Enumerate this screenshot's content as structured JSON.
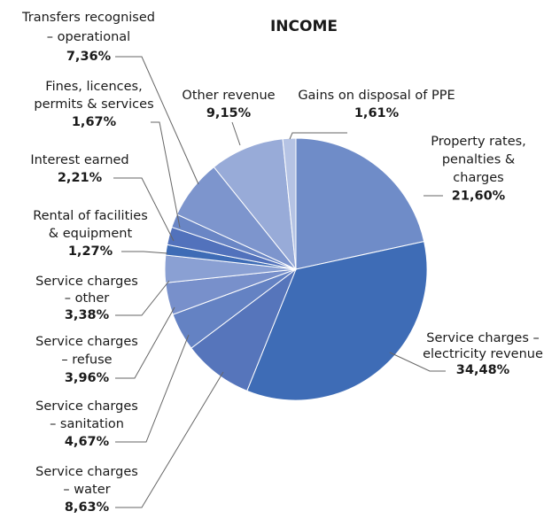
{
  "chart_data": {
    "type": "pie",
    "title": "INCOME",
    "categories": [
      [
        "Property rates,",
        "penalties &",
        "charges"
      ],
      [
        "Service charges –",
        "electricity revenue"
      ],
      [
        "Service charges",
        "– water"
      ],
      [
        "Service charges",
        "– sanitation"
      ],
      [
        "Service charges",
        "– refuse"
      ],
      [
        "Service charges",
        "– other"
      ],
      [
        "Rental of facilities",
        "& equipment"
      ],
      [
        "Interest earned"
      ],
      [
        "Fines, licences,",
        "permits & services"
      ],
      [
        "Transfers recognised",
        "– operational"
      ],
      [
        "Other revenue"
      ],
      [
        "Gains on disposal of PPE"
      ]
    ],
    "values": [
      21.6,
      34.48,
      8.63,
      4.67,
      3.96,
      3.38,
      1.27,
      2.21,
      1.67,
      7.36,
      9.15,
      1.61
    ],
    "value_labels": [
      "21,60%",
      "34,48%",
      "8,63%",
      "4,67%",
      "3,96%",
      "3,38%",
      "1,27%",
      "2,21%",
      "1,67%",
      "7,36%",
      "9,15%",
      "1,61%"
    ],
    "colors": [
      "#6f8cc8",
      "#3e6cb6",
      "#5675bb",
      "#6482c3",
      "#7890cb",
      "#8aa0d3",
      "#3e6cb6",
      "#5272bc",
      "#6a86c5",
      "#7d95cd",
      "#98abd8",
      "#b5c3e4"
    ]
  }
}
